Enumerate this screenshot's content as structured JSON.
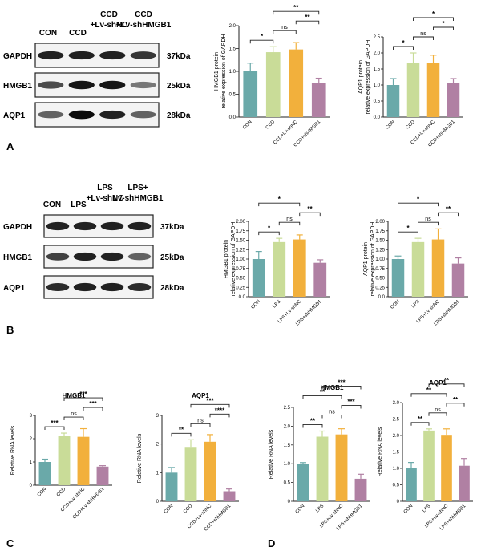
{
  "panel_labels": [
    "A",
    "B",
    "C",
    "D"
  ],
  "blots": [
    {
      "id": "A",
      "lanes": [
        "CON",
        "CCD",
        "CCD\n+Lv-shNC",
        "CCD\n+Lv-shHMGB1"
      ],
      "rows": [
        {
          "protein": "GAPDH",
          "kda": "37kDa",
          "intensity": [
            0.85,
            0.85,
            0.85,
            0.75
          ]
        },
        {
          "protein": "HMGB1",
          "kda": "25kDa",
          "intensity": [
            0.65,
            0.9,
            0.9,
            0.45
          ]
        },
        {
          "protein": "AQP1",
          "kda": "28kDa",
          "intensity": [
            0.55,
            0.95,
            0.85,
            0.55
          ]
        }
      ]
    },
    {
      "id": "B",
      "lanes": [
        "CON",
        "LPS",
        "LPS\n+Lv-shNC",
        "LPS+\nLv-shHMGB1"
      ],
      "rows": [
        {
          "protein": "GAPDH",
          "kda": "37kDa",
          "intensity": [
            0.85,
            0.85,
            0.85,
            0.85
          ]
        },
        {
          "protein": "HMGB1",
          "kda": "25kDa",
          "intensity": [
            0.7,
            0.85,
            0.85,
            0.55
          ]
        },
        {
          "protein": "AQP1",
          "kda": "28kDa",
          "intensity": [
            0.8,
            0.85,
            0.85,
            0.8
          ]
        }
      ]
    }
  ],
  "colors": [
    "#6aa9a9",
    "#c9dc98",
    "#f2b03c",
    "#b080a3"
  ],
  "chart_data": [
    {
      "type": "bar",
      "title": "",
      "ylabel": "HMGB1 protein\nrelative expression of GAPDH",
      "categories": [
        "CON",
        "CCD",
        "CCD+Lv-shNC",
        "CCD+shHMGB1"
      ],
      "values": [
        1.0,
        1.42,
        1.48,
        0.75
      ],
      "errors": [
        0.18,
        0.12,
        0.15,
        0.1
      ],
      "ylim": [
        0,
        2.0
      ],
      "yticks": [
        "0.0",
        "0.5",
        "1.0",
        "1.5",
        "2.0"
      ],
      "comparisons": [
        {
          "a": 0,
          "b": 1,
          "label": "*"
        },
        {
          "a": 1,
          "b": 2,
          "label": "ns"
        },
        {
          "a": 2,
          "b": 3,
          "label": "**"
        },
        {
          "a": 1,
          "b": 3,
          "label": "**"
        }
      ]
    },
    {
      "type": "bar",
      "title": "",
      "ylabel": "AQP1 protein\nrelative expression of GAPDH",
      "categories": [
        "CON",
        "CCD",
        "CCD+Lv-shNC",
        "CCD+shHMGB1"
      ],
      "values": [
        1.0,
        1.7,
        1.68,
        1.05
      ],
      "errors": [
        0.2,
        0.3,
        0.25,
        0.15
      ],
      "ylim": [
        0,
        2.5
      ],
      "yticks": [
        "0.0",
        "0.5",
        "1.0",
        "1.5",
        "2.0",
        "2.5"
      ],
      "comparisons": [
        {
          "a": 0,
          "b": 1,
          "label": "*"
        },
        {
          "a": 1,
          "b": 2,
          "label": "ns"
        },
        {
          "a": 2,
          "b": 3,
          "label": "*"
        },
        {
          "a": 1,
          "b": 3,
          "label": "*"
        }
      ]
    },
    {
      "type": "bar",
      "title": "",
      "ylabel": "HMGB1 protein\nrelative expression of GAPDH",
      "categories": [
        "CON",
        "LPS",
        "LPS+Lv-shNC",
        "LPS+shHMGB1"
      ],
      "values": [
        1.0,
        1.45,
        1.52,
        0.9
      ],
      "errors": [
        0.2,
        0.1,
        0.12,
        0.08
      ],
      "ylim": [
        0,
        2.0
      ],
      "yticks": [
        "0.0",
        "0.25",
        "0.50",
        "0.75",
        "1.00",
        "1.25",
        "1.50",
        "1.75",
        "2.00"
      ],
      "comparisons": [
        {
          "a": 0,
          "b": 1,
          "label": "*"
        },
        {
          "a": 1,
          "b": 2,
          "label": "ns"
        },
        {
          "a": 2,
          "b": 3,
          "label": "**"
        },
        {
          "a": 0,
          "b": 2,
          "label": "*"
        }
      ]
    },
    {
      "type": "bar",
      "title": "",
      "ylabel": "AQP1 protein\nrelative expression of GAPDH",
      "categories": [
        "CON",
        "LPS",
        "LPS+Lv-shNC",
        "LPS+shHMGB1"
      ],
      "values": [
        1.0,
        1.45,
        1.52,
        0.88
      ],
      "errors": [
        0.08,
        0.1,
        0.28,
        0.15
      ],
      "ylim": [
        0,
        2.0
      ],
      "yticks": [
        "0.0",
        "0.25",
        "0.50",
        "0.75",
        "1.00",
        "1.25",
        "1.50",
        "1.75",
        "2.00"
      ],
      "comparisons": [
        {
          "a": 0,
          "b": 1,
          "label": "*"
        },
        {
          "a": 1,
          "b": 2,
          "label": "ns"
        },
        {
          "a": 2,
          "b": 3,
          "label": "**"
        },
        {
          "a": 0,
          "b": 2,
          "label": "*"
        }
      ]
    },
    {
      "type": "bar",
      "title": "HMGB1",
      "ylabel": "Relative RNA levels",
      "categories": [
        "CON",
        "CCD",
        "CCD+Lv-shNC",
        "CCD+Lv-shHMGB1"
      ],
      "values": [
        1.0,
        2.12,
        2.08,
        0.8
      ],
      "errors": [
        0.12,
        0.12,
        0.35,
        0.04
      ],
      "ylim": [
        0,
        3
      ],
      "yticks": [
        "0",
        "1",
        "2",
        "3"
      ],
      "comparisons": [
        {
          "a": 0,
          "b": 1,
          "label": "***"
        },
        {
          "a": 1,
          "b": 2,
          "label": "ns"
        },
        {
          "a": 2,
          "b": 3,
          "label": "***"
        },
        {
          "a": 1,
          "b": 3,
          "label": "***"
        }
      ]
    },
    {
      "type": "bar",
      "title": "AQP1",
      "ylabel": "Relative RNA levels",
      "categories": [
        "CON",
        "CCD",
        "CCD+Lv-shNC",
        "CCD+shHMGB1"
      ],
      "values": [
        1.0,
        1.9,
        2.08,
        0.35
      ],
      "errors": [
        0.18,
        0.25,
        0.25,
        0.08
      ],
      "ylim": [
        0,
        3
      ],
      "yticks": [
        "0",
        "1",
        "2",
        "3"
      ],
      "comparisons": [
        {
          "a": 0,
          "b": 1,
          "label": "**"
        },
        {
          "a": 1,
          "b": 2,
          "label": "ns"
        },
        {
          "a": 2,
          "b": 3,
          "label": "****"
        },
        {
          "a": 1,
          "b": 3,
          "label": "***"
        }
      ]
    },
    {
      "type": "bar",
      "title": "HMGB1",
      "ylabel": "Relative RNA levels",
      "categories": [
        "CON",
        "LPS",
        "LPS+Lv-shNC",
        "LPS+shHMGB1"
      ],
      "values": [
        1.0,
        1.72,
        1.78,
        0.6
      ],
      "errors": [
        0.03,
        0.15,
        0.15,
        0.12
      ],
      "ylim": [
        0,
        2.5
      ],
      "yticks": [
        "0",
        "0.5",
        "1.0",
        "1.5",
        "2.0",
        "2.5"
      ],
      "comparisons": [
        {
          "a": 0,
          "b": 1,
          "label": "**"
        },
        {
          "a": 1,
          "b": 2,
          "label": "ns"
        },
        {
          "a": 2,
          "b": 3,
          "label": "***"
        },
        {
          "a": 0,
          "b": 2,
          "label": "**"
        },
        {
          "a": 1,
          "b": 3,
          "label": "***"
        }
      ]
    },
    {
      "type": "bar",
      "title": "AQP1",
      "ylabel": "Relative RNA levels",
      "categories": [
        "CON",
        "LPS",
        "LPS+Lv-shNC",
        "LPS+shHMGB1"
      ],
      "values": [
        1.0,
        2.15,
        2.02,
        1.08
      ],
      "errors": [
        0.18,
        0.05,
        0.18,
        0.22
      ],
      "ylim": [
        0,
        3.0
      ],
      "yticks": [
        "0",
        "0.5",
        "1.0",
        "1.5",
        "2.0",
        "2.5",
        "3.0"
      ],
      "comparisons": [
        {
          "a": 0,
          "b": 1,
          "label": "**"
        },
        {
          "a": 1,
          "b": 2,
          "label": "ns"
        },
        {
          "a": 2,
          "b": 3,
          "label": "**"
        },
        {
          "a": 0,
          "b": 2,
          "label": "**"
        },
        {
          "a": 1,
          "b": 3,
          "label": "**"
        }
      ]
    }
  ]
}
